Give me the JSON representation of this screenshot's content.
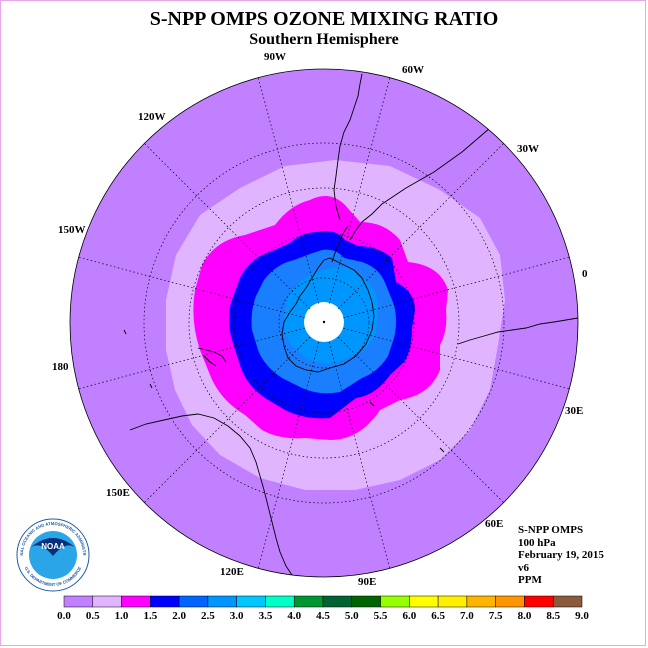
{
  "header": {
    "title": "S-NPP OMPS OZONE MIXING RATIO",
    "subtitle": "Southern Hemisphere"
  },
  "map": {
    "projection": "south polar stereographic",
    "longitude_labels": [
      {
        "label": "90W"
      },
      {
        "label": "60W"
      },
      {
        "label": "30W"
      },
      {
        "label": "0"
      },
      {
        "label": "30E"
      },
      {
        "label": "60E"
      },
      {
        "label": "90E"
      },
      {
        "label": "120E"
      },
      {
        "label": "150E"
      },
      {
        "label": "180"
      },
      {
        "label": "150W"
      },
      {
        "label": "120W"
      }
    ]
  },
  "info": {
    "instrument": "S-NPP OMPS",
    "level": "100 hPa",
    "date": "February 19, 2015",
    "version": "v6",
    "units": "PPM"
  },
  "logo": {
    "text": "NOAA",
    "ring_text": "NATIONAL OCEANIC AND ATMOSPHERIC ADMINISTRATION",
    "bottom_text": "U.S. DEPARTMENT OF COMMERCE"
  },
  "colorbar": {
    "tick_labels": [
      "0.0",
      "0.5",
      "1.0",
      "1.5",
      "2.0",
      "2.5",
      "3.0",
      "3.5",
      "4.0",
      "4.5",
      "5.0",
      "5.5",
      "6.0",
      "6.5",
      "7.0",
      "7.5",
      "8.0",
      "8.5",
      "9.0"
    ],
    "colors": [
      "#c080ff",
      "#e0b4ff",
      "#ff00ff",
      "#0000ff",
      "#0064ff",
      "#0096ff",
      "#00c8ff",
      "#00ffc8",
      "#009632",
      "#006432",
      "#006400",
      "#96ff00",
      "#ffff00",
      "#fff000",
      "#ffb400",
      "#ff9600",
      "#ff0000",
      "#8b5a3c"
    ]
  },
  "colors": {
    "background": "#ffffff",
    "frame": "#e9a6ea",
    "ocean_outer": "#c080ff",
    "contour_0_5": "#e0b4ff",
    "contour_1_0": "#ff00ff",
    "contour_1_5": "#0000ff",
    "contour_2_0": "#1a7fff",
    "contour_2_5": "#0096ff"
  }
}
